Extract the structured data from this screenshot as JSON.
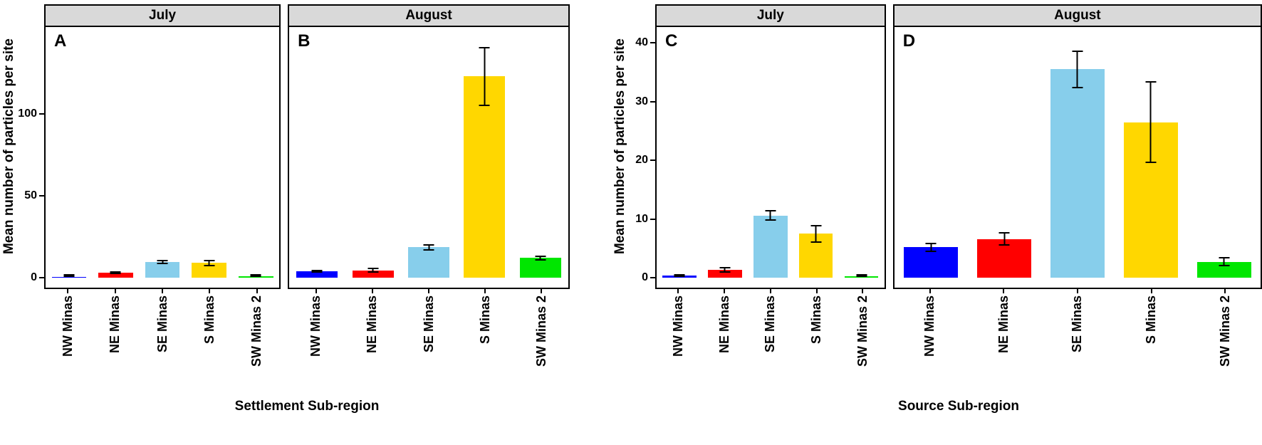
{
  "figure": {
    "categories": [
      "NW Minas",
      "NE Minas",
      "SE Minas",
      "S Minas",
      "SW Minas 2"
    ],
    "bar_colors": [
      "#0000ff",
      "#ff0000",
      "#87ceeb",
      "#ffd700",
      "#00e600"
    ],
    "error_bar_color": "#000000",
    "strip_background": "#d9d9d9",
    "groups": [
      {
        "xlabel": "Settlement Sub-region",
        "ylabel": "Mean number of particles per site",
        "ymax": 147,
        "yticks": [
          0,
          50,
          100
        ],
        "panels": [
          "A",
          "B"
        ]
      },
      {
        "xlabel": "Source Sub-region",
        "ylabel": "Mean number of particles per site",
        "ymax": 41,
        "yticks": [
          0,
          10,
          20,
          30,
          40
        ],
        "panels": [
          "C",
          "D"
        ]
      }
    ]
  },
  "chart_data": [
    {
      "type": "bar",
      "panel": "A",
      "facet": "July",
      "xlabel": "Settlement Sub-region",
      "ylabel": "Mean number of particles per site",
      "categories": [
        "NW Minas",
        "NE Minas",
        "SE Minas",
        "S Minas",
        "SW Minas 2"
      ],
      "values": [
        0.6,
        3.0,
        9.5,
        9.0,
        1.0
      ],
      "errors": [
        0.3,
        0.8,
        1.2,
        2.0,
        0.5
      ],
      "bar_colors": [
        "#0000ff",
        "#ff0000",
        "#87ceeb",
        "#ffd700",
        "#00e600"
      ],
      "ylim": [
        0,
        147
      ],
      "yticks": [
        0,
        50,
        100
      ],
      "legend": "none",
      "grid": false
    },
    {
      "type": "bar",
      "panel": "B",
      "facet": "August",
      "xlabel": "Settlement Sub-region",
      "ylabel": "Mean number of particles per site",
      "categories": [
        "NW Minas",
        "NE Minas",
        "SE Minas",
        "S Minas",
        "SW Minas 2"
      ],
      "values": [
        4.0,
        4.5,
        18.5,
        123.0,
        12.0
      ],
      "errors": [
        1.0,
        1.5,
        2.0,
        18.0,
        1.5
      ],
      "bar_colors": [
        "#0000ff",
        "#ff0000",
        "#87ceeb",
        "#ffd700",
        "#00e600"
      ],
      "ylim": [
        0,
        147
      ],
      "yticks": [
        0,
        50,
        100
      ],
      "legend": "none",
      "grid": false
    },
    {
      "type": "bar",
      "panel": "C",
      "facet": "July",
      "xlabel": "Source Sub-region",
      "ylabel": "Mean number of particles per site",
      "categories": [
        "NW Minas",
        "NE Minas",
        "SE Minas",
        "S Minas",
        "SW Minas 2"
      ],
      "values": [
        0.4,
        1.3,
        10.6,
        7.5,
        0.3
      ],
      "errors": [
        0.25,
        0.5,
        0.9,
        1.5,
        0.15
      ],
      "bar_colors": [
        "#0000ff",
        "#ff0000",
        "#87ceeb",
        "#ffd700",
        "#00e600"
      ],
      "ylim": [
        0,
        41
      ],
      "yticks": [
        0,
        10,
        20,
        30,
        40
      ],
      "legend": "none",
      "grid": false
    },
    {
      "type": "bar",
      "panel": "D",
      "facet": "August",
      "xlabel": "Source Sub-region",
      "ylabel": "Mean number of particles per site",
      "categories": [
        "NW Minas",
        "NE Minas",
        "SE Minas",
        "S Minas",
        "SW Minas 2"
      ],
      "values": [
        5.2,
        6.6,
        35.5,
        26.5,
        2.7
      ],
      "errors": [
        0.8,
        1.2,
        3.2,
        7.0,
        0.8
      ],
      "bar_colors": [
        "#0000ff",
        "#ff0000",
        "#87ceeb",
        "#ffd700",
        "#00e600"
      ],
      "ylim": [
        0,
        41
      ],
      "yticks": [
        0,
        10,
        20,
        30,
        40
      ],
      "legend": "none",
      "grid": false
    }
  ]
}
